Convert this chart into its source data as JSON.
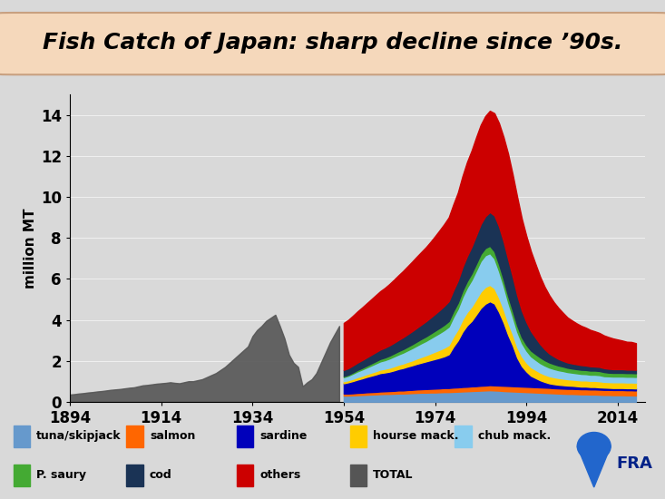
{
  "title": "Fish Catch of Japan: sharp decline since ’90s.",
  "ylabel": "million MT",
  "title_bg_color": "#f5d8bb",
  "title_fontsize": 18,
  "ylim": [
    0,
    15
  ],
  "yticks": [
    0,
    2,
    4,
    6,
    8,
    10,
    12,
    14
  ],
  "xticks": [
    1894,
    1914,
    1934,
    1954,
    1974,
    1994,
    2014
  ],
  "xmax": 2020,
  "colors": {
    "tuna_skipjack": "#6699cc",
    "salmon": "#ff6600",
    "sardine": "#0000bb",
    "hourse_mack": "#ffcc00",
    "chub_mack": "#88ccee",
    "p_saury": "#44aa33",
    "cod": "#1a3355",
    "others": "#cc0000",
    "total": "#555555"
  },
  "legend_labels": [
    "tuna/skipjack",
    "salmon",
    "sardine",
    "hourse mack.",
    "chub mack.",
    "P. saury",
    "cod",
    "others",
    "TOTAL"
  ],
  "bg_color": "#d0d0d0",
  "years_total": [
    1894,
    1895,
    1896,
    1897,
    1898,
    1899,
    1900,
    1901,
    1902,
    1903,
    1904,
    1905,
    1906,
    1907,
    1908,
    1909,
    1910,
    1911,
    1912,
    1913,
    1914,
    1915,
    1916,
    1917,
    1918,
    1919,
    1920,
    1921,
    1922,
    1923,
    1924,
    1925,
    1926,
    1927,
    1928,
    1929,
    1930,
    1931,
    1932,
    1933,
    1934,
    1935,
    1936,
    1937,
    1938,
    1939,
    1940,
    1941,
    1942,
    1943,
    1944,
    1945,
    1946,
    1947,
    1948,
    1949,
    1950,
    1951,
    1952,
    1953
  ],
  "total_early": [
    0.35,
    0.37,
    0.4,
    0.42,
    0.45,
    0.47,
    0.5,
    0.52,
    0.55,
    0.58,
    0.6,
    0.62,
    0.65,
    0.68,
    0.7,
    0.75,
    0.8,
    0.82,
    0.85,
    0.88,
    0.9,
    0.92,
    0.95,
    0.92,
    0.9,
    0.95,
    1.0,
    1.0,
    1.05,
    1.1,
    1.2,
    1.3,
    1.4,
    1.55,
    1.7,
    1.9,
    2.1,
    2.3,
    2.5,
    2.7,
    3.2,
    3.5,
    3.7,
    3.95,
    4.1,
    4.25,
    3.7,
    3.1,
    2.3,
    1.9,
    1.7,
    0.75,
    0.95,
    1.1,
    1.4,
    1.9,
    2.4,
    2.9,
    3.3,
    3.7
  ],
  "years_detail": [
    1954,
    1955,
    1956,
    1957,
    1958,
    1959,
    1960,
    1961,
    1962,
    1963,
    1964,
    1965,
    1966,
    1967,
    1968,
    1969,
    1970,
    1971,
    1972,
    1973,
    1974,
    1975,
    1976,
    1977,
    1978,
    1979,
    1980,
    1981,
    1982,
    1983,
    1984,
    1985,
    1986,
    1987,
    1988,
    1989,
    1990,
    1991,
    1992,
    1993,
    1994,
    1995,
    1996,
    1997,
    1998,
    1999,
    2000,
    2001,
    2002,
    2003,
    2004,
    2005,
    2006,
    2007,
    2008,
    2009,
    2010,
    2011,
    2012,
    2013,
    2014,
    2015,
    2016,
    2017,
    2018
  ],
  "tuna_skipjack": [
    0.3,
    0.3,
    0.31,
    0.32,
    0.33,
    0.34,
    0.35,
    0.36,
    0.37,
    0.38,
    0.38,
    0.39,
    0.4,
    0.4,
    0.41,
    0.42,
    0.43,
    0.44,
    0.44,
    0.45,
    0.45,
    0.46,
    0.47,
    0.47,
    0.48,
    0.49,
    0.5,
    0.51,
    0.52,
    0.53,
    0.54,
    0.55,
    0.56,
    0.55,
    0.54,
    0.52,
    0.51,
    0.5,
    0.49,
    0.48,
    0.47,
    0.46,
    0.45,
    0.44,
    0.43,
    0.42,
    0.41,
    0.4,
    0.39,
    0.38,
    0.38,
    0.37,
    0.36,
    0.36,
    0.35,
    0.35,
    0.34,
    0.33,
    0.33,
    0.32,
    0.32,
    0.32,
    0.31,
    0.31,
    0.3
  ],
  "salmon": [
    0.1,
    0.1,
    0.1,
    0.11,
    0.11,
    0.12,
    0.12,
    0.12,
    0.13,
    0.13,
    0.14,
    0.14,
    0.15,
    0.15,
    0.16,
    0.16,
    0.17,
    0.17,
    0.18,
    0.18,
    0.19,
    0.19,
    0.2,
    0.2,
    0.21,
    0.21,
    0.22,
    0.22,
    0.23,
    0.23,
    0.24,
    0.24,
    0.25,
    0.25,
    0.25,
    0.26,
    0.26,
    0.26,
    0.26,
    0.26,
    0.26,
    0.26,
    0.26,
    0.26,
    0.26,
    0.26,
    0.25,
    0.25,
    0.25,
    0.25,
    0.25,
    0.25,
    0.25,
    0.25,
    0.25,
    0.25,
    0.25,
    0.25,
    0.25,
    0.25,
    0.25,
    0.25,
    0.25,
    0.25,
    0.25
  ],
  "sardine": [
    0.5,
    0.55,
    0.6,
    0.65,
    0.7,
    0.75,
    0.8,
    0.85,
    0.9,
    0.92,
    0.95,
    1.0,
    1.05,
    1.1,
    1.15,
    1.2,
    1.25,
    1.3,
    1.35,
    1.4,
    1.45,
    1.5,
    1.55,
    1.65,
    2.0,
    2.3,
    2.7,
    3.0,
    3.2,
    3.5,
    3.8,
    4.0,
    4.1,
    4.0,
    3.6,
    3.1,
    2.5,
    2.0,
    1.4,
    1.0,
    0.75,
    0.55,
    0.45,
    0.35,
    0.28,
    0.22,
    0.2,
    0.18,
    0.17,
    0.16,
    0.15,
    0.14,
    0.13,
    0.13,
    0.12,
    0.12,
    0.11,
    0.11,
    0.1,
    0.1,
    0.1,
    0.1,
    0.1,
    0.1,
    0.1
  ],
  "hourse_mack": [
    0.1,
    0.1,
    0.11,
    0.12,
    0.13,
    0.14,
    0.15,
    0.16,
    0.17,
    0.18,
    0.19,
    0.2,
    0.21,
    0.22,
    0.23,
    0.24,
    0.26,
    0.28,
    0.3,
    0.33,
    0.36,
    0.39,
    0.42,
    0.45,
    0.5,
    0.55,
    0.6,
    0.65,
    0.7,
    0.75,
    0.8,
    0.82,
    0.8,
    0.75,
    0.7,
    0.65,
    0.6,
    0.55,
    0.52,
    0.48,
    0.44,
    0.42,
    0.4,
    0.38,
    0.36,
    0.35,
    0.34,
    0.33,
    0.32,
    0.31,
    0.3,
    0.3,
    0.3,
    0.3,
    0.3,
    0.3,
    0.3,
    0.28,
    0.28,
    0.28,
    0.28,
    0.28,
    0.28,
    0.28,
    0.28
  ],
  "chub_mack": [
    0.2,
    0.22,
    0.25,
    0.28,
    0.3,
    0.32,
    0.35,
    0.38,
    0.4,
    0.42,
    0.45,
    0.48,
    0.5,
    0.53,
    0.56,
    0.6,
    0.63,
    0.67,
    0.7,
    0.74,
    0.78,
    0.82,
    0.86,
    0.9,
    0.95,
    1.0,
    1.1,
    1.2,
    1.3,
    1.4,
    1.5,
    1.55,
    1.55,
    1.45,
    1.3,
    1.15,
    1.0,
    0.85,
    0.75,
    0.65,
    0.58,
    0.53,
    0.49,
    0.46,
    0.44,
    0.42,
    0.4,
    0.38,
    0.37,
    0.35,
    0.34,
    0.33,
    0.32,
    0.31,
    0.3,
    0.3,
    0.3,
    0.28,
    0.28,
    0.28,
    0.28,
    0.28,
    0.28,
    0.28,
    0.28
  ],
  "p_saury": [
    0.05,
    0.05,
    0.06,
    0.07,
    0.08,
    0.09,
    0.1,
    0.11,
    0.12,
    0.13,
    0.14,
    0.15,
    0.16,
    0.17,
    0.18,
    0.19,
    0.2,
    0.21,
    0.22,
    0.23,
    0.24,
    0.25,
    0.26,
    0.27,
    0.28,
    0.29,
    0.3,
    0.31,
    0.32,
    0.33,
    0.34,
    0.35,
    0.36,
    0.35,
    0.33,
    0.31,
    0.3,
    0.3,
    0.3,
    0.28,
    0.28,
    0.28,
    0.28,
    0.28,
    0.26,
    0.25,
    0.24,
    0.23,
    0.22,
    0.21,
    0.2,
    0.2,
    0.2,
    0.2,
    0.2,
    0.2,
    0.2,
    0.2,
    0.18,
    0.18,
    0.18,
    0.18,
    0.18,
    0.18,
    0.18
  ],
  "cod": [
    0.3,
    0.32,
    0.34,
    0.36,
    0.38,
    0.4,
    0.42,
    0.44,
    0.46,
    0.48,
    0.5,
    0.52,
    0.55,
    0.58,
    0.61,
    0.64,
    0.67,
    0.7,
    0.74,
    0.78,
    0.82,
    0.87,
    0.92,
    0.97,
    1.02,
    1.08,
    1.15,
    1.22,
    1.3,
    1.38,
    1.46,
    1.55,
    1.65,
    1.75,
    1.85,
    1.85,
    1.8,
    1.65,
    1.48,
    1.3,
    1.12,
    0.95,
    0.8,
    0.65,
    0.54,
    0.44,
    0.38,
    0.32,
    0.28,
    0.26,
    0.25,
    0.24,
    0.23,
    0.22,
    0.21,
    0.2,
    0.2,
    0.19,
    0.19,
    0.18,
    0.18,
    0.18,
    0.17,
    0.17,
    0.17
  ],
  "others": [
    2.3,
    2.36,
    2.43,
    2.5,
    2.57,
    2.64,
    2.71,
    2.78,
    2.85,
    2.92,
    3.0,
    3.08,
    3.16,
    3.24,
    3.32,
    3.4,
    3.48,
    3.55,
    3.62,
    3.7,
    3.8,
    3.9,
    4.0,
    4.1,
    4.2,
    4.3,
    4.45,
    4.6,
    4.7,
    4.8,
    4.85,
    4.9,
    4.95,
    5.0,
    5.05,
    5.1,
    5.15,
    5.0,
    4.8,
    4.5,
    4.2,
    3.9,
    3.6,
    3.3,
    3.05,
    2.85,
    2.65,
    2.5,
    2.35,
    2.2,
    2.1,
    2.0,
    1.92,
    1.85,
    1.78,
    1.72,
    1.66,
    1.6,
    1.55,
    1.5,
    1.45,
    1.4,
    1.36,
    1.35,
    1.3
  ]
}
